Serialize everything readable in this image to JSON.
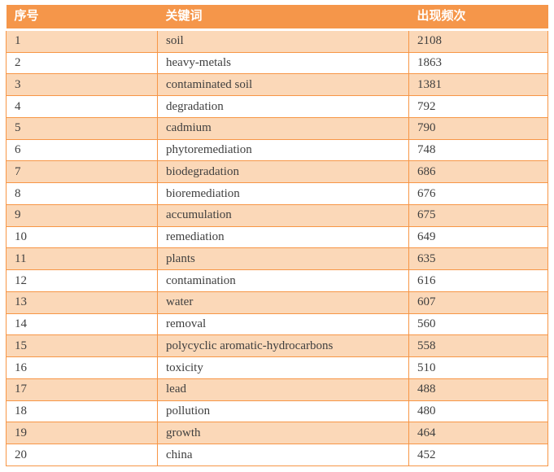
{
  "table": {
    "headers": [
      {
        "label": "序号"
      },
      {
        "label": "关键词"
      },
      {
        "label": "出现频次"
      }
    ],
    "rows": [
      {
        "rank": "1",
        "keyword": "soil",
        "frequency": "2108"
      },
      {
        "rank": "2",
        "keyword": "heavy-metals",
        "frequency": "1863"
      },
      {
        "rank": "3",
        "keyword": "contaminated soil",
        "frequency": "1381"
      },
      {
        "rank": "4",
        "keyword": "degradation",
        "frequency": "792"
      },
      {
        "rank": "5",
        "keyword": "cadmium",
        "frequency": "790"
      },
      {
        "rank": "6",
        "keyword": "phytoremediation",
        "frequency": "748"
      },
      {
        "rank": "7",
        "keyword": "biodegradation",
        "frequency": "686"
      },
      {
        "rank": "8",
        "keyword": "bioremediation",
        "frequency": "676"
      },
      {
        "rank": "9",
        "keyword": "accumulation",
        "frequency": "675"
      },
      {
        "rank": "10",
        "keyword": "remediation",
        "frequency": "649"
      },
      {
        "rank": "11",
        "keyword": "plants",
        "frequency": "635"
      },
      {
        "rank": "12",
        "keyword": "contamination",
        "frequency": "616"
      },
      {
        "rank": "13",
        "keyword": "water",
        "frequency": "607"
      },
      {
        "rank": "14",
        "keyword": "removal",
        "frequency": "560"
      },
      {
        "rank": "15",
        "keyword": "polycyclic aromatic-hydrocarbons",
        "frequency": "558"
      },
      {
        "rank": "16",
        "keyword": "toxicity",
        "frequency": "510"
      },
      {
        "rank": "17",
        "keyword": "lead",
        "frequency": "488"
      },
      {
        "rank": "18",
        "keyword": "pollution",
        "frequency": "480"
      },
      {
        "rank": "19",
        "keyword": "growth",
        "frequency": "464"
      },
      {
        "rank": "20",
        "keyword": "china",
        "frequency": "452"
      }
    ]
  },
  "colors": {
    "header_bg": "#F5964A",
    "border": "#F79646",
    "row_alt_bg": "#FBD8B8",
    "row_bg": "#FFFFFF",
    "header_text": "#FFFFFF",
    "body_text": "#3F3F3F"
  },
  "chart_data": {
    "type": "table",
    "title": "",
    "columns": [
      "序号",
      "关键词",
      "出现频次"
    ],
    "rows": [
      [
        1,
        "soil",
        2108
      ],
      [
        2,
        "heavy-metals",
        1863
      ],
      [
        3,
        "contaminated soil",
        1381
      ],
      [
        4,
        "degradation",
        792
      ],
      [
        5,
        "cadmium",
        790
      ],
      [
        6,
        "phytoremediation",
        748
      ],
      [
        7,
        "biodegradation",
        686
      ],
      [
        8,
        "bioremediation",
        676
      ],
      [
        9,
        "accumulation",
        675
      ],
      [
        10,
        "remediation",
        649
      ],
      [
        11,
        "plants",
        635
      ],
      [
        12,
        "contamination",
        616
      ],
      [
        13,
        "water",
        607
      ],
      [
        14,
        "removal",
        560
      ],
      [
        15,
        "polycyclic aromatic-hydrocarbons",
        558
      ],
      [
        16,
        "toxicity",
        510
      ],
      [
        17,
        "lead",
        488
      ],
      [
        18,
        "pollution",
        480
      ],
      [
        19,
        "growth",
        464
      ],
      [
        20,
        "china",
        452
      ]
    ]
  }
}
